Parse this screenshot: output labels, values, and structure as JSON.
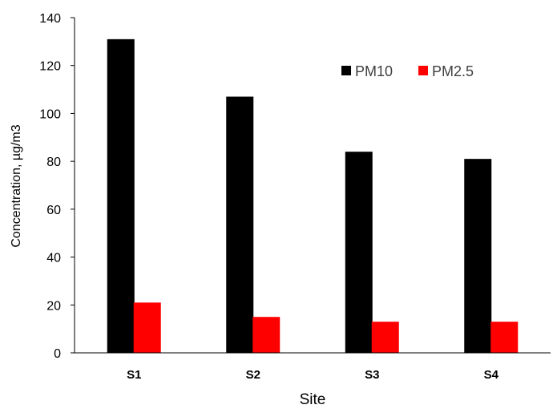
{
  "chart_data": {
    "type": "bar",
    "categories": [
      "S1",
      "S2",
      "S3",
      "S4"
    ],
    "series": [
      {
        "name": "PM10",
        "color": "#000000",
        "values": [
          131,
          107,
          84,
          81
        ]
      },
      {
        "name": "PM2.5",
        "color": "#ff0000",
        "values": [
          21,
          15,
          13,
          13
        ]
      }
    ],
    "xlabel": "Site",
    "ylabel": "Concentration, µg/m3",
    "ylim": [
      0,
      140
    ],
    "yticks": [
      0,
      20,
      40,
      60,
      80,
      100,
      120,
      140
    ],
    "grid": false,
    "legend_position": "top-right"
  }
}
